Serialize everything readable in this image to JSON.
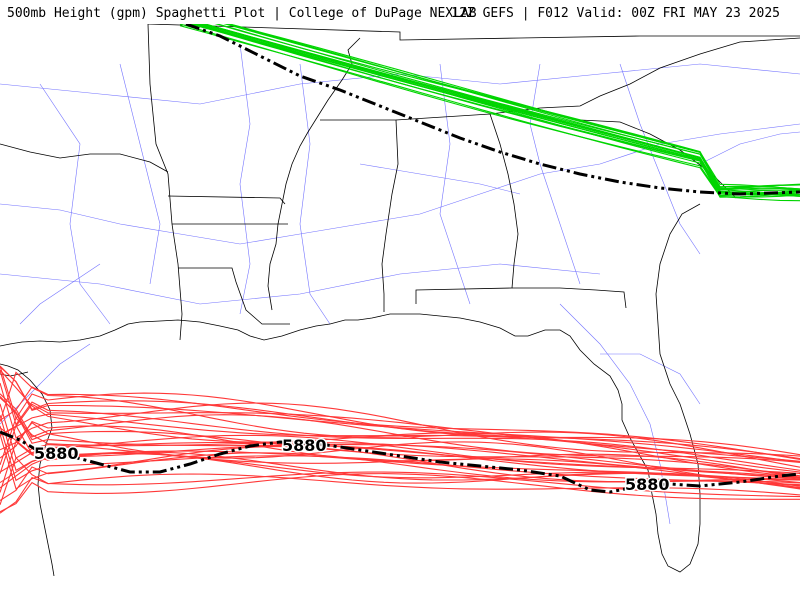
{
  "header": {
    "title_left": "500mb Height (gpm) Spaghetti Plot | College of DuPage NEXLAB",
    "title_right": "12Z GEFS | F012 Valid: 00Z FRI MAY 23 2025"
  },
  "contours": {
    "labels": [
      "5880",
      "5880",
      "5880"
    ]
  },
  "colors": {
    "north_members": "#00d400",
    "south_members": "#ff3030",
    "ensemble_mean": "#000000",
    "borders": "#000000",
    "highways": "#5555ff"
  }
}
